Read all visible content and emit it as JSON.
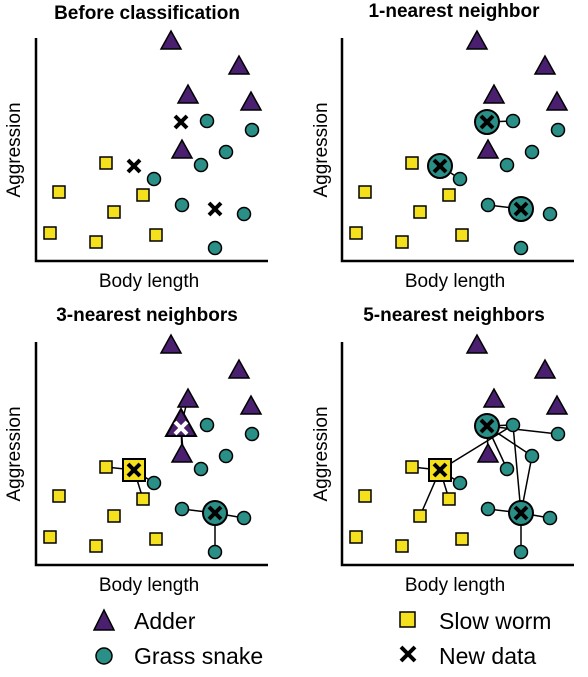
{
  "colors": {
    "adder": "#4b1f6f",
    "grass_snake": "#2a8f86",
    "slow_worm": "#f5e01e",
    "new_data": "#000000",
    "line": "#000000"
  },
  "axes": {
    "xlabel": "Body length",
    "ylabel": "Aggression"
  },
  "panels": [
    {
      "title": "Before classification",
      "k": 0
    },
    {
      "title": "1-nearest neighbor",
      "k": 1
    },
    {
      "title": "3-nearest neighbors",
      "k": 3
    },
    {
      "title": "5-nearest neighbors",
      "k": 5
    }
  ],
  "legend": {
    "adder": "Adder",
    "grass_snake": "Grass snake",
    "slow_worm": "Slow worm",
    "new_data": "New data"
  }
}
